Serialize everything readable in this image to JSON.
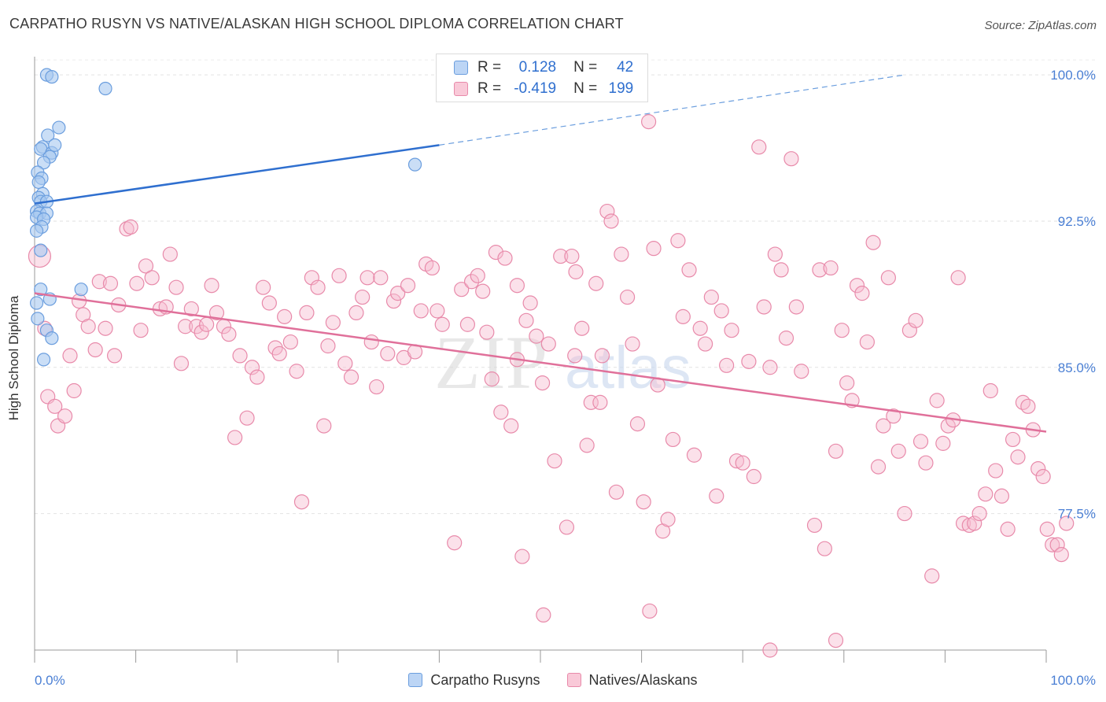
{
  "title": "CARPATHO RUSYN VS NATIVE/ALASKAN HIGH SCHOOL DIPLOMA CORRELATION CHART",
  "source": "Source: ZipAtlas.com",
  "watermark": "ZIPatlas",
  "legend": {
    "rows": [
      {
        "r_label": "R =",
        "r_value": "0.128",
        "n_label": "N =",
        "n_value": "42",
        "color": "#a7c8f0",
        "border": "#6b9ede"
      },
      {
        "r_label": "R =",
        "r_value": "-0.419",
        "n_label": "N =",
        "n_value": "199",
        "color": "#f7bcd0",
        "border": "#e88aaa"
      }
    ]
  },
  "bottom_legend": [
    "Carpatho Rusyns",
    "Natives/Alaskans"
  ],
  "chart_data": {
    "type": "scatter",
    "title": "CARPATHO RUSYN VS NATIVE/ALASKAN HIGH SCHOOL DIPLOMA CORRELATION CHART",
    "xlabel": "",
    "ylabel": "High School Diploma",
    "x_tick_labels": [
      "0.0%",
      "100.0%"
    ],
    "y_tick_labels": [
      "100.0%",
      "92.5%",
      "85.0%",
      "77.5%"
    ],
    "y_ticks": [
      100.0,
      92.5,
      85.0,
      77.5
    ],
    "xlim": [
      0,
      100
    ],
    "ylim": [
      70.5,
      101.5
    ],
    "grid": true,
    "legend_position": "top-center",
    "series": [
      {
        "name": "Carpatho Rusyns",
        "color": "#6b9ede",
        "fill": "#a7c8f0",
        "trend": {
          "x0": 0,
          "y0": 93.4,
          "x1": 40,
          "y1": 96.4,
          "dashed_to_x": 86,
          "dashed_to_y": 100.0
        },
        "points": [
          [
            1.2,
            100.0
          ],
          [
            1.7,
            99.9
          ],
          [
            7,
            99.3
          ],
          [
            2.4,
            97.3
          ],
          [
            1.3,
            96.9
          ],
          [
            0.8,
            96.3
          ],
          [
            0.6,
            96.2
          ],
          [
            1.7,
            96.0
          ],
          [
            2,
            96.4
          ],
          [
            1.5,
            95.8
          ],
          [
            0.9,
            95.5
          ],
          [
            0.3,
            95.0
          ],
          [
            0.7,
            94.7
          ],
          [
            0.4,
            94.5
          ],
          [
            0.8,
            93.9
          ],
          [
            0.4,
            93.7
          ],
          [
            0.6,
            93.5
          ],
          [
            1.2,
            93.5
          ],
          [
            0.2,
            93.0
          ],
          [
            0.5,
            92.9
          ],
          [
            1.2,
            92.9
          ],
          [
            0.2,
            92.7
          ],
          [
            0.9,
            92.6
          ],
          [
            0.7,
            92.2
          ],
          [
            0.2,
            92.0
          ],
          [
            37.6,
            95.4
          ],
          [
            0.6,
            91.0
          ],
          [
            0.6,
            89.0
          ],
          [
            4.6,
            89.0
          ],
          [
            1.5,
            88.5
          ],
          [
            0.2,
            88.3
          ],
          [
            0.3,
            87.5
          ],
          [
            1.2,
            86.9
          ],
          [
            1.7,
            86.5
          ],
          [
            0.9,
            85.4
          ]
        ]
      },
      {
        "name": "Natives/Alaskans",
        "color": "#e88aaa",
        "fill": "#f7bcd0",
        "trend": {
          "x0": 0,
          "y0": 88.8,
          "x1": 100,
          "y1": 81.7
        },
        "points": [
          [
            0.5,
            90.7
          ],
          [
            1,
            87.0
          ],
          [
            1.3,
            83.5
          ],
          [
            2,
            83.0
          ],
          [
            2.3,
            82.0
          ],
          [
            3,
            82.5
          ],
          [
            3.5,
            85.6
          ],
          [
            3.9,
            83.8
          ],
          [
            4.4,
            88.4
          ],
          [
            4.8,
            87.7
          ],
          [
            5.3,
            87.1
          ],
          [
            6,
            85.9
          ],
          [
            6.4,
            89.4
          ],
          [
            7,
            87.0
          ],
          [
            7.5,
            89.3
          ],
          [
            7.9,
            85.6
          ],
          [
            8.3,
            88.2
          ],
          [
            9.1,
            92.1
          ],
          [
            9.5,
            92.2
          ],
          [
            10.1,
            89.3
          ],
          [
            10.5,
            86.9
          ],
          [
            11,
            90.2
          ],
          [
            11.6,
            89.6
          ],
          [
            12.4,
            88.0
          ],
          [
            13,
            88.1
          ],
          [
            13.4,
            90.8
          ],
          [
            14,
            89.1
          ],
          [
            14.5,
            85.2
          ],
          [
            14.9,
            87.1
          ],
          [
            15.5,
            88.0
          ],
          [
            16,
            87.1
          ],
          [
            16.5,
            86.8
          ],
          [
            17,
            87.2
          ],
          [
            17.5,
            89.2
          ],
          [
            18,
            87.8
          ],
          [
            18.7,
            87.1
          ],
          [
            19.2,
            86.7
          ],
          [
            19.8,
            81.4
          ],
          [
            20.3,
            85.6
          ],
          [
            21,
            82.4
          ],
          [
            21.5,
            85.0
          ],
          [
            22,
            84.5
          ],
          [
            22.6,
            89.1
          ],
          [
            23.2,
            88.3
          ],
          [
            23.8,
            86.0
          ],
          [
            24.2,
            85.7
          ],
          [
            24.7,
            87.6
          ],
          [
            25.3,
            86.3
          ],
          [
            25.9,
            84.8
          ],
          [
            26.4,
            78.1
          ],
          [
            26.9,
            87.8
          ],
          [
            27.4,
            89.6
          ],
          [
            28,
            89.1
          ],
          [
            28.6,
            82.0
          ],
          [
            29,
            86.1
          ],
          [
            29.5,
            87.3
          ],
          [
            30.1,
            89.7
          ],
          [
            30.7,
            85.2
          ],
          [
            31.3,
            84.5
          ],
          [
            31.8,
            87.8
          ],
          [
            32.4,
            88.6
          ],
          [
            32.9,
            89.6
          ],
          [
            33.3,
            86.3
          ],
          [
            33.8,
            84.0
          ],
          [
            34.2,
            89.6
          ],
          [
            34.9,
            85.7
          ],
          [
            35.5,
            88.4
          ],
          [
            35.9,
            88.8
          ],
          [
            36.5,
            85.5
          ],
          [
            36.9,
            89.2
          ],
          [
            37.6,
            85.8
          ],
          [
            38.2,
            87.9
          ],
          [
            38.7,
            90.3
          ],
          [
            39.3,
            90.1
          ],
          [
            39.8,
            87.9
          ],
          [
            40.3,
            87.2
          ],
          [
            41.5,
            76.0
          ],
          [
            42.2,
            89.0
          ],
          [
            42.8,
            87.2
          ],
          [
            43.2,
            89.4
          ],
          [
            43.8,
            89.7
          ],
          [
            44.3,
            88.9
          ],
          [
            44.7,
            86.8
          ],
          [
            45.2,
            84.4
          ],
          [
            45.6,
            90.9
          ],
          [
            46.1,
            82.7
          ],
          [
            46.5,
            90.6
          ],
          [
            47.1,
            82.0
          ],
          [
            47.7,
            89.2
          ],
          [
            48.2,
            75.3
          ],
          [
            48.6,
            87.4
          ],
          [
            49,
            88.3
          ],
          [
            49.6,
            86.6
          ],
          [
            50.2,
            84.2
          ],
          [
            50.8,
            86.2
          ],
          [
            51.4,
            80.2
          ],
          [
            52,
            90.7
          ],
          [
            52.6,
            76.8
          ],
          [
            53.1,
            90.7
          ],
          [
            53.5,
            89.9
          ],
          [
            54.1,
            87.0
          ],
          [
            54.6,
            81.0
          ],
          [
            55,
            83.2
          ],
          [
            55.5,
            89.3
          ],
          [
            56.1,
            85.6
          ],
          [
            56.6,
            93.0
          ],
          [
            57,
            92.5
          ],
          [
            57.5,
            78.6
          ],
          [
            58,
            90.8
          ],
          [
            58.6,
            88.6
          ],
          [
            59.1,
            86.2
          ],
          [
            59.6,
            82.1
          ],
          [
            60.2,
            78.1
          ],
          [
            60.7,
            97.6
          ],
          [
            61.2,
            91.1
          ],
          [
            61.6,
            84.1
          ],
          [
            62.1,
            76.6
          ],
          [
            62.6,
            77.2
          ],
          [
            63.1,
            81.3
          ],
          [
            63.6,
            91.5
          ],
          [
            64.1,
            87.6
          ],
          [
            64.7,
            90.0
          ],
          [
            65.2,
            80.5
          ],
          [
            65.8,
            87.0
          ],
          [
            66.3,
            86.2
          ],
          [
            66.9,
            88.6
          ],
          [
            67.4,
            78.4
          ],
          [
            67.9,
            87.9
          ],
          [
            68.4,
            85.1
          ],
          [
            68.9,
            86.9
          ],
          [
            69.4,
            80.2
          ],
          [
            70,
            80.1
          ],
          [
            70.6,
            85.3
          ],
          [
            71.1,
            79.4
          ],
          [
            71.6,
            96.3
          ],
          [
            72.1,
            88.1
          ],
          [
            72.7,
            85.0
          ],
          [
            73.2,
            90.8
          ],
          [
            73.8,
            90.0
          ],
          [
            74.3,
            86.5
          ],
          [
            74.8,
            95.7
          ],
          [
            75.3,
            88.1
          ],
          [
            75.8,
            84.8
          ],
          [
            77.1,
            76.9
          ],
          [
            77.6,
            90.0
          ],
          [
            78.1,
            75.7
          ],
          [
            78.7,
            90.1
          ],
          [
            79.2,
            80.7
          ],
          [
            79.8,
            86.9
          ],
          [
            80.3,
            84.2
          ],
          [
            80.8,
            83.3
          ],
          [
            81.3,
            89.2
          ],
          [
            81.8,
            88.8
          ],
          [
            82.3,
            86.3
          ],
          [
            82.9,
            91.4
          ],
          [
            83.4,
            79.9
          ],
          [
            83.9,
            82.0
          ],
          [
            84.4,
            89.6
          ],
          [
            84.9,
            82.5
          ],
          [
            85.4,
            80.7
          ],
          [
            86,
            77.5
          ],
          [
            86.5,
            86.9
          ],
          [
            87.1,
            87.4
          ],
          [
            87.6,
            81.2
          ],
          [
            88.1,
            80.1
          ],
          [
            88.7,
            74.3
          ],
          [
            89.2,
            83.3
          ],
          [
            89.8,
            81.1
          ],
          [
            90.3,
            82.0
          ],
          [
            90.8,
            82.3
          ],
          [
            91.3,
            89.6
          ],
          [
            91.8,
            77.0
          ],
          [
            92.4,
            76.9
          ],
          [
            92.9,
            77.0
          ],
          [
            93.4,
            77.5
          ],
          [
            94,
            78.5
          ],
          [
            94.5,
            83.8
          ],
          [
            95,
            79.7
          ],
          [
            95.6,
            78.4
          ],
          [
            96.2,
            76.7
          ],
          [
            96.7,
            81.3
          ],
          [
            97.2,
            80.4
          ],
          [
            97.7,
            83.2
          ],
          [
            98.2,
            83.0
          ],
          [
            98.7,
            81.8
          ],
          [
            99.2,
            79.8
          ],
          [
            99.7,
            79.4
          ],
          [
            100.1,
            76.7
          ],
          [
            100.6,
            75.9
          ],
          [
            101.1,
            75.9
          ],
          [
            101.5,
            75.4
          ],
          [
            102,
            77.0
          ],
          [
            79.2,
            71.0
          ],
          [
            72.7,
            70.5
          ],
          [
            60.8,
            72.5
          ],
          [
            50.3,
            72.3
          ],
          [
            47.7,
            85.4
          ],
          [
            53.4,
            85.6
          ],
          [
            55.9,
            83.2
          ]
        ]
      }
    ]
  }
}
